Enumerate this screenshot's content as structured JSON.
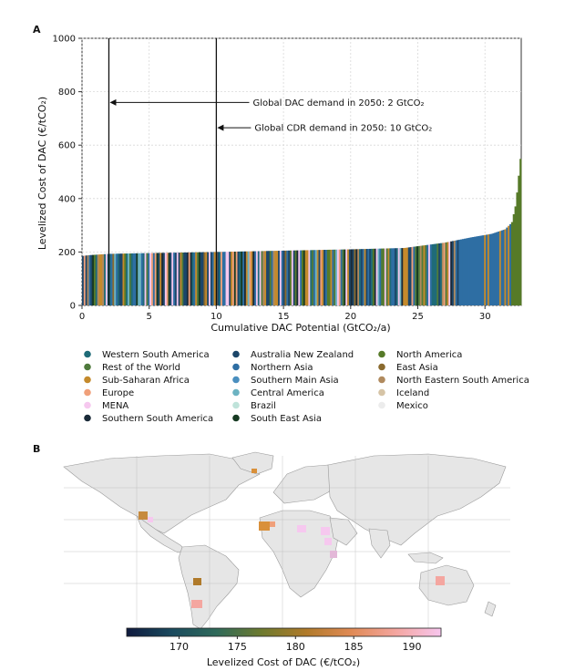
{
  "panels": {
    "a": "A",
    "b": "B"
  },
  "chart_data": [
    {
      "type": "bar",
      "title": "",
      "xlabel": "Cumulative DAC Potential (GtCO₂/a)",
      "ylabel": "Levelized Cost of DAC (€/tCO₂)",
      "xlim": [
        0,
        32.7
      ],
      "ylim": [
        0,
        1000
      ],
      "x_ticks": [
        0,
        5,
        10,
        15,
        20,
        25,
        30
      ],
      "y_ticks": [
        0,
        200,
        400,
        600,
        800,
        1000
      ],
      "grid": true,
      "curve": {
        "description": "cumulative supply curve, bars coloured by region",
        "x": [
          0,
          0.5,
          2,
          5,
          10,
          15,
          20,
          24,
          27,
          29,
          30.5,
          31.5,
          32.0,
          32.3,
          32.5,
          32.7
        ],
        "y": [
          185,
          188,
          193,
          196,
          200,
          205,
          210,
          215,
          235,
          255,
          268,
          285,
          310,
          380,
          480,
          580
        ]
      },
      "annotations": [
        {
          "text": "Global DAC demand in 2050: 2 GtCO₂",
          "x": 2,
          "y": 760
        },
        {
          "text": "Global CDR demand in 2050: 10 GtCO₂",
          "x": 10,
          "y": 665
        }
      ],
      "legend": {
        "placement": "bottom",
        "entries": [
          {
            "name": "Western South America",
            "color": "#1f6b78"
          },
          {
            "name": "Rest of the World",
            "color": "#4f7a3c"
          },
          {
            "name": "Sub-Saharan Africa",
            "color": "#c48a2c"
          },
          {
            "name": "Europe",
            "color": "#f0a07a"
          },
          {
            "name": "MENA",
            "color": "#f6c8ef"
          },
          {
            "name": "Southern South America",
            "color": "#1a2a38"
          },
          {
            "name": "Australia New Zealand",
            "color": "#1c4669"
          },
          {
            "name": "Northern Asia",
            "color": "#2e6ea3"
          },
          {
            "name": "Southern Main Asia",
            "color": "#4a8fbf"
          },
          {
            "name": "Central America",
            "color": "#6cb3c2"
          },
          {
            "name": "Brazil",
            "color": "#bfe3da"
          },
          {
            "name": "South East Asia",
            "color": "#173a22"
          },
          {
            "name": "North America",
            "color": "#567a28"
          },
          {
            "name": "East Asia",
            "color": "#8a6a2e"
          },
          {
            "name": "North Eastern South America",
            "color": "#b08a5e"
          },
          {
            "name": "Iceland",
            "color": "#d6c4a6"
          },
          {
            "name": "Mexico",
            "color": "#ececec"
          }
        ]
      }
    },
    {
      "type": "heatmap",
      "description": "world map of levelized cost of DAC",
      "colorbar": {
        "label": "Levelized Cost of DAC (€/tCO₂)",
        "ticks": [
          170,
          175,
          180,
          185,
          190
        ],
        "range": [
          165.5,
          192.5
        ],
        "colors": [
          "#0f1a3e",
          "#1a4a5e",
          "#2f6a5a",
          "#6d7a2e",
          "#b07a2a",
          "#e08a55",
          "#f4a6a0",
          "#f7c6ee"
        ]
      }
    }
  ]
}
